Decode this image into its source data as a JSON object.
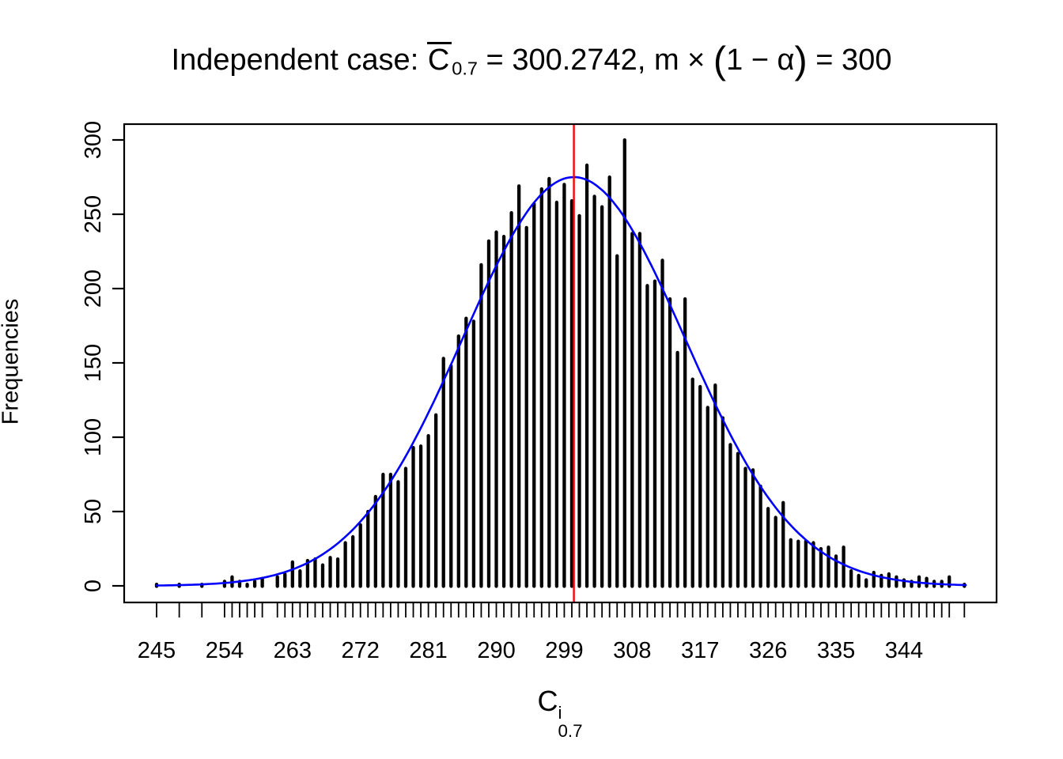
{
  "title": {
    "prefix": "Independent case: ",
    "stat_base": "C",
    "stat_sub": "0.7",
    "equals": " = ",
    "stat_value": "300.2742",
    "separator": ",  ",
    "m_symbol": "m",
    "times": " × ",
    "open_paren": "(",
    "paren_inner": "1 − α",
    "close_paren": ")",
    "equals2": " = ",
    "target_value": "300"
  },
  "y_axis": {
    "label": "Frequencies",
    "tick_labels": [
      "0",
      "50",
      "100",
      "150",
      "200",
      "250",
      "300"
    ]
  },
  "x_axis": {
    "label_base": "C",
    "label_sup": "i",
    "label_sub": "0.7",
    "tick_labels": [
      "245",
      "254",
      "263",
      "272",
      "281",
      "290",
      "299",
      "308",
      "317",
      "326",
      "335",
      "344"
    ]
  },
  "chart_data": {
    "type": "bar",
    "title": "Independent case: mean C0.7 = 300.2742, m x (1 - alpha) = 300",
    "xlabel": "C_0.7^i",
    "ylabel": "Frequencies",
    "xlim": [
      240.7,
      356.3
    ],
    "ylim": [
      0,
      310
    ],
    "grid": false,
    "x_label_ticks": [
      245,
      254,
      263,
      272,
      281,
      290,
      299,
      308,
      317,
      326,
      335,
      344
    ],
    "y_ticks": [
      0,
      50,
      100,
      150,
      200,
      250,
      300
    ],
    "points": [
      [
        245,
        1
      ],
      [
        246,
        0
      ],
      [
        247,
        0
      ],
      [
        248,
        1
      ],
      [
        249,
        0
      ],
      [
        250,
        0
      ],
      [
        251,
        1
      ],
      [
        252,
        0
      ],
      [
        253,
        0
      ],
      [
        254,
        3
      ],
      [
        255,
        6
      ],
      [
        256,
        3
      ],
      [
        257,
        1
      ],
      [
        258,
        3
      ],
      [
        259,
        5
      ],
      [
        260,
        0
      ],
      [
        261,
        6
      ],
      [
        262,
        8
      ],
      [
        263,
        16
      ],
      [
        264,
        10
      ],
      [
        265,
        17
      ],
      [
        266,
        18
      ],
      [
        267,
        14
      ],
      [
        268,
        19
      ],
      [
        269,
        18
      ],
      [
        270,
        29
      ],
      [
        271,
        33
      ],
      [
        272,
        41
      ],
      [
        273,
        50
      ],
      [
        274,
        60
      ],
      [
        275,
        75
      ],
      [
        276,
        75
      ],
      [
        277,
        70
      ],
      [
        278,
        79
      ],
      [
        279,
        93
      ],
      [
        280,
        94
      ],
      [
        281,
        101
      ],
      [
        282,
        115
      ],
      [
        283,
        153
      ],
      [
        284,
        148
      ],
      [
        285,
        168
      ],
      [
        286,
        180
      ],
      [
        287,
        178
      ],
      [
        288,
        216
      ],
      [
        289,
        232
      ],
      [
        290,
        238
      ],
      [
        291,
        235
      ],
      [
        292,
        251
      ],
      [
        293,
        269
      ],
      [
        294,
        241
      ],
      [
        295,
        257
      ],
      [
        296,
        267
      ],
      [
        297,
        274
      ],
      [
        298,
        258
      ],
      [
        299,
        270
      ],
      [
        300,
        259
      ],
      [
        301,
        249
      ],
      [
        302,
        283
      ],
      [
        303,
        262
      ],
      [
        304,
        255
      ],
      [
        305,
        275
      ],
      [
        306,
        222
      ],
      [
        307,
        300
      ],
      [
        308,
        237
      ],
      [
        309,
        237
      ],
      [
        310,
        202
      ],
      [
        311,
        205
      ],
      [
        312,
        219
      ],
      [
        313,
        193
      ],
      [
        314,
        157
      ],
      [
        315,
        193
      ],
      [
        316,
        139
      ],
      [
        317,
        134
      ],
      [
        318,
        120
      ],
      [
        319,
        135
      ],
      [
        320,
        113
      ],
      [
        321,
        95
      ],
      [
        322,
        89
      ],
      [
        323,
        79
      ],
      [
        324,
        78
      ],
      [
        325,
        67
      ],
      [
        326,
        52
      ],
      [
        327,
        46
      ],
      [
        328,
        56
      ],
      [
        329,
        31
      ],
      [
        330,
        30
      ],
      [
        331,
        30
      ],
      [
        332,
        29
      ],
      [
        333,
        25
      ],
      [
        334,
        26
      ],
      [
        335,
        20
      ],
      [
        336,
        26
      ],
      [
        337,
        10
      ],
      [
        338,
        7
      ],
      [
        339,
        4
      ],
      [
        340,
        9
      ],
      [
        341,
        7
      ],
      [
        342,
        8
      ],
      [
        343,
        6
      ],
      [
        344,
        4
      ],
      [
        345,
        3
      ],
      [
        346,
        6
      ],
      [
        347,
        5
      ],
      [
        348,
        3
      ],
      [
        349,
        3
      ],
      [
        350,
        6
      ],
      [
        351,
        0
      ],
      [
        352,
        1
      ]
    ],
    "spike_color": "#000000",
    "curve": {
      "shape": "normal",
      "peak": 275,
      "mean": 300.2742,
      "sd": 14.7,
      "x_start": 245,
      "x_end": 352.4,
      "color": "#0000ff"
    },
    "vline": {
      "x": 300.2742,
      "color": "#ff0000"
    }
  }
}
